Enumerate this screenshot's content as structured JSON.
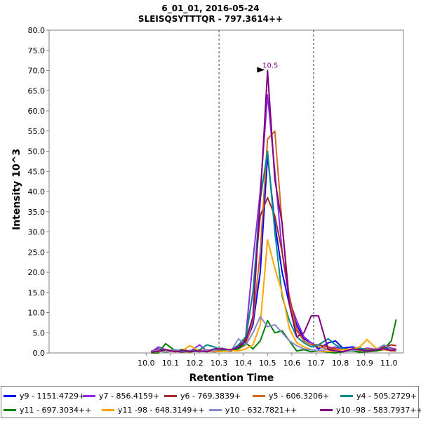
{
  "chart_data": {
    "type": "line",
    "title": "6_01_01, 2016-05-24",
    "subtitle": "SLEISQSYTTTQR - 797.3614++",
    "xlabel": "Retention Time",
    "ylabel": "Intensity 10^3",
    "xlim": [
      9.6,
      11.06
    ],
    "ylim": [
      0,
      80
    ],
    "xticks": [
      "10.0",
      "10.1",
      "10.2",
      "10.3",
      "10.4",
      "10.5",
      "10.6",
      "10.7",
      "10.8",
      "10.9",
      "11.0"
    ],
    "yticks": [
      "0.0",
      "5.0",
      "10.0",
      "15.0",
      "20.0",
      "25.0",
      "30.0",
      "35.0",
      "40.0",
      "45.0",
      "50.0",
      "55.0",
      "60.0",
      "65.0",
      "70.0",
      "75.0",
      "80.0"
    ],
    "boundaries": [
      10.3,
      10.69
    ],
    "peak_annotation": {
      "x": 10.5,
      "y": 70,
      "label": "10.5",
      "color": "#800080"
    },
    "x": [
      10.02,
      10.05,
      10.08,
      10.12,
      10.15,
      10.18,
      10.22,
      10.25,
      10.28,
      10.31,
      10.35,
      10.38,
      10.41,
      10.44,
      10.47,
      10.5,
      10.53,
      10.56,
      10.59,
      10.62,
      10.65,
      10.68,
      10.71,
      10.75,
      10.78,
      10.81,
      10.85,
      10.88,
      10.91,
      10.95,
      10.98,
      11.01,
      11.03
    ],
    "series": [
      {
        "name": "y9 - 1151.4729+",
        "color": "#0000ff",
        "values": [
          0.3,
          1.0,
          0.4,
          0.8,
          0.3,
          0.6,
          0.8,
          0.4,
          1.0,
          0.6,
          0.8,
          1.2,
          2.5,
          7.0,
          20.0,
          49.0,
          32.0,
          20.0,
          12.0,
          7.0,
          3.5,
          2.5,
          1.0,
          2.5,
          3.0,
          1.2,
          1.5,
          0.8,
          1.0,
          0.6,
          1.5,
          0.8,
          0.5
        ]
      },
      {
        "name": "y7 - 856.4159+",
        "color": "#8a2be2",
        "values": [
          0.2,
          1.5,
          0.8,
          0.3,
          0.9,
          0.4,
          2.0,
          0.5,
          0.3,
          1.2,
          0.6,
          1.5,
          4.0,
          23.0,
          40.0,
          64.0,
          45.0,
          25.0,
          13.0,
          8.0,
          4.0,
          2.5,
          1.5,
          1.0,
          1.5,
          0.8,
          1.0,
          0.6,
          1.2,
          0.8,
          1.8,
          1.2,
          0.9
        ]
      },
      {
        "name": "y6 - 769.3839+",
        "color": "#a52a2a",
        "values": [
          0.5,
          0.3,
          0.8,
          0.4,
          0.2,
          0.6,
          0.3,
          0.8,
          0.5,
          0.6,
          0.4,
          1.5,
          3.5,
          15.0,
          34.0,
          38.5,
          34.0,
          25.0,
          14.0,
          6.0,
          3.0,
          2.0,
          2.0,
          1.5,
          1.0,
          0.8,
          0.6,
          1.2,
          0.8,
          1.0,
          1.5,
          2.0,
          1.8
        ]
      },
      {
        "name": "y5 - 606.3206+",
        "color": "#d2691e",
        "values": [
          0.2,
          0.8,
          0.3,
          0.6,
          0.4,
          0.2,
          0.8,
          0.3,
          0.5,
          0.7,
          0.5,
          1.0,
          2.0,
          8.0,
          25.0,
          53.0,
          55.0,
          32.0,
          13.0,
          5.5,
          3.0,
          2.0,
          1.5,
          1.0,
          0.8,
          1.0,
          0.8,
          0.5,
          1.0,
          0.6,
          0.8,
          1.0,
          0.6
        ]
      },
      {
        "name": "y4 - 505.2729+",
        "color": "#008b8b",
        "values": [
          0.3,
          0.5,
          0.2,
          0.6,
          0.3,
          0.5,
          0.8,
          2.0,
          1.5,
          0.8,
          0.6,
          2.0,
          4.0,
          15.0,
          38.0,
          50.0,
          30.0,
          14.0,
          8.0,
          4.0,
          2.5,
          1.5,
          2.0,
          3.5,
          2.0,
          1.0,
          0.8,
          1.2,
          0.6,
          0.8,
          1.0,
          0.5,
          0.8
        ]
      },
      {
        "name": "y11 - 697.3034++",
        "color": "#008000",
        "values": [
          0.0,
          0.0,
          2.3,
          0.5,
          0.8,
          0.3,
          0.5,
          0.8,
          0.3,
          0.4,
          0.6,
          1.0,
          2.5,
          1.0,
          3.0,
          8.0,
          5.0,
          5.5,
          3.0,
          0.5,
          0.8,
          0.3,
          0.5,
          0.2,
          0.0,
          0.3,
          0.5,
          0.2,
          0.3,
          0.5,
          1.0,
          3.0,
          8.3
        ]
      },
      {
        "name": "y11 -98 - 648.3149++",
        "color": "#ffa500",
        "values": [
          0.2,
          0.3,
          0.5,
          0.3,
          0.6,
          1.8,
          0.5,
          0.8,
          0.3,
          0.4,
          0.6,
          0.5,
          1.0,
          2.0,
          7.0,
          28.0,
          21.0,
          15.0,
          6.0,
          2.5,
          1.5,
          0.8,
          0.5,
          0.3,
          0.5,
          0.8,
          1.0,
          1.5,
          3.3,
          1.0,
          0.8,
          0.5,
          0.3
        ]
      },
      {
        "name": "y10 - 632.7821++",
        "color": "#8888cc",
        "values": [
          0.3,
          0.6,
          0.2,
          0.8,
          0.4,
          0.6,
          0.3,
          0.8,
          0.5,
          1.2,
          0.6,
          3.5,
          2.0,
          5.0,
          9.0,
          6.5,
          7.0,
          5.0,
          3.0,
          1.8,
          1.0,
          0.8,
          0.6,
          0.8,
          0.5,
          0.3,
          0.6,
          0.8,
          0.4,
          1.0,
          2.0,
          0.8,
          0.5
        ]
      },
      {
        "name": "y10 -98 - 583.7937++",
        "color": "#800080",
        "values": [
          0.2,
          0.4,
          0.8,
          0.3,
          0.6,
          0.4,
          0.5,
          0.3,
          1.0,
          1.0,
          0.8,
          1.5,
          3.0,
          9.0,
          38.0,
          70.0,
          43.0,
          32.0,
          12.0,
          4.0,
          5.0,
          9.2,
          9.2,
          0.8,
          0.5,
          0.3,
          1.0,
          0.8,
          0.5,
          0.8,
          1.0,
          0.6,
          0.8
        ]
      }
    ]
  }
}
